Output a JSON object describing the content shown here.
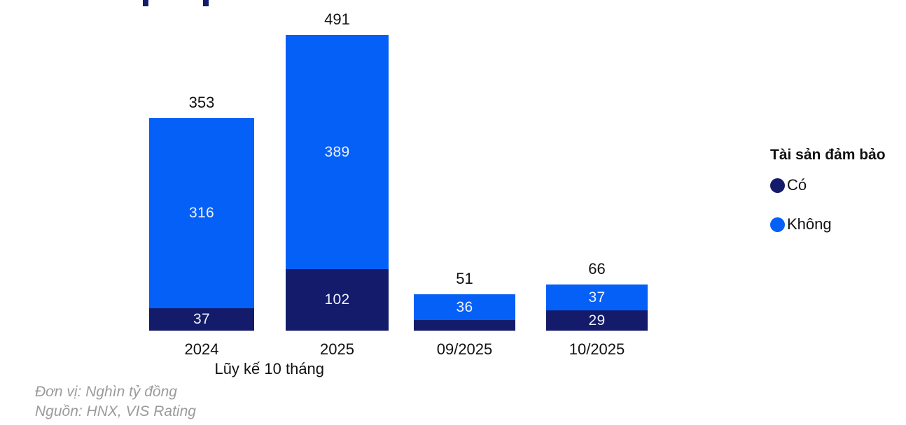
{
  "page": {
    "background": "#ffffff"
  },
  "colors": {
    "secured_navy": "#141B6B",
    "unsecured_blue": "#0560F7",
    "text_dark": "#111111",
    "value_label_light": "#EFF2F9",
    "footnote_gray": "#9B9B9B"
  },
  "cropped_title": {
    "note": "only two descender fragments of a cropped navy title line are visible at the very top"
  },
  "legend": {
    "title": "Tài sản đảm bảo",
    "items": [
      {
        "label": "Có",
        "color": "#141B6B"
      },
      {
        "label": "Không",
        "color": "#0560F7"
      }
    ]
  },
  "chart_data": {
    "type": "bar",
    "stacked": true,
    "categories": [
      "2024",
      "2025",
      "09/2025",
      "10/2025"
    ],
    "group_label": {
      "text": "Lũy kế 10 tháng",
      "spans": [
        "2024",
        "2025"
      ]
    },
    "series": [
      {
        "name": "Có",
        "color": "#141B6B",
        "values": [
          37,
          102,
          15,
          29
        ],
        "labels": [
          "37",
          "102",
          "",
          "29"
        ]
      },
      {
        "name": "Không",
        "color": "#0560F7",
        "values": [
          316,
          389,
          36,
          37
        ],
        "labels": [
          "316",
          "389",
          "36",
          "37"
        ]
      }
    ],
    "totals": [
      353,
      491,
      51,
      66
    ],
    "total_labels": [
      "353",
      "491",
      "51",
      "66"
    ],
    "ylim": [
      0,
      510
    ],
    "grid": false,
    "y_axis_shown": false,
    "legend_position": "right",
    "unit": "Nghìn tỷ đồng"
  },
  "footnotes": {
    "unit": "Đơn vị: Nghìn tỷ đồng",
    "source": "Nguồn: HNX, VIS Rating"
  }
}
